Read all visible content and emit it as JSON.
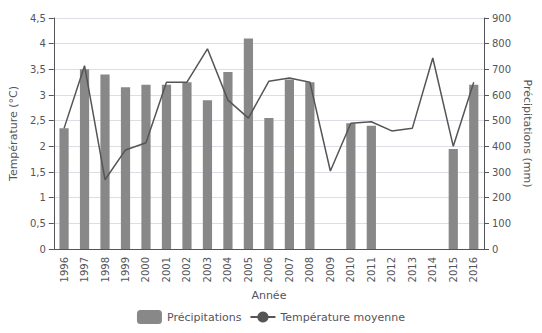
{
  "chart_data": {
    "type": "bar",
    "xlabel": "Année",
    "ylabel": "Température (°C)",
    "y2label": "Précipitations (mm)",
    "categories": [
      "1996",
      "1997",
      "1998",
      "1999",
      "2000",
      "2001",
      "2002",
      "2003",
      "2004",
      "2005",
      "2006",
      "2007",
      "2008",
      "2009",
      "2010",
      "2011",
      "2012",
      "2013",
      "2014",
      "2015",
      "2016"
    ],
    "series": [
      {
        "name": "Précipitations",
        "type": "bar",
        "axis": "y2",
        "color": "#888888",
        "values": [
          470,
          700,
          680,
          630,
          640,
          640,
          650,
          580,
          690,
          820,
          510,
          660,
          650,
          0,
          490,
          480,
          0,
          0,
          0,
          390,
          640
        ]
      },
      {
        "name": "Température moyenne",
        "type": "line",
        "axis": "y",
        "color": "#555555",
        "values": [
          2.35,
          3.57,
          1.35,
          1.93,
          2.07,
          3.25,
          3.25,
          3.9,
          2.9,
          2.55,
          3.27,
          3.33,
          3.25,
          1.52,
          2.45,
          2.48,
          2.3,
          2.35,
          3.72,
          2.0,
          3.25
        ]
      }
    ],
    "ylim": [
      0,
      4.5
    ],
    "yticks": [
      0,
      {
        "value": 0.5,
        "label": "0,5"
      },
      1,
      {
        "value": 1.5,
        "label": "1,5"
      },
      2,
      {
        "value": 2.5,
        "label": "2,5"
      },
      3,
      {
        "value": 3.5,
        "label": "3,5"
      },
      4,
      {
        "value": 4.5,
        "label": "4,5"
      }
    ],
    "y2lim": [
      0,
      900
    ],
    "y2ticks": [
      0,
      100,
      200,
      300,
      400,
      500,
      600,
      700,
      800,
      900
    ],
    "grid": true,
    "legend": "bottom"
  }
}
